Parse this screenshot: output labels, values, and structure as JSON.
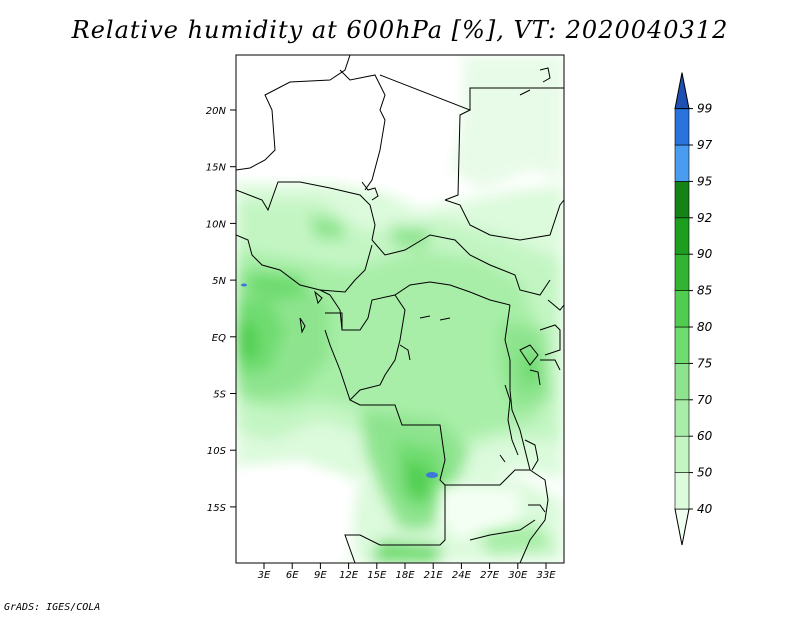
{
  "title": "Relative humidity at 600hPa [%], VT: 2020040312",
  "credit": "GrADS: IGES/COLA",
  "map": {
    "lat_labels": [
      "20N",
      "15N",
      "10N",
      "5N",
      "EQ",
      "5S",
      "10S",
      "15S"
    ],
    "lon_labels": [
      "3E",
      "6E",
      "9E",
      "12E",
      "15E",
      "18E",
      "21E",
      "24E",
      "27E",
      "30E",
      "33E"
    ]
  },
  "colorbar": {
    "labels": [
      "40",
      "50",
      "60",
      "70",
      "75",
      "80",
      "85",
      "90",
      "92",
      "95",
      "97",
      "99"
    ],
    "colors": [
      "#f0fff0",
      "#dcfadc",
      "#c3f5c3",
      "#a8eea8",
      "#8ee48e",
      "#6fdc6f",
      "#50cd50",
      "#32b432",
      "#1e9e1e",
      "#148214",
      "#4a9cf0",
      "#2a72dc",
      "#1e50b4"
    ]
  },
  "colors": {
    "border": "#000000",
    "background": "#ffffff",
    "lake": "#3c78d8"
  }
}
